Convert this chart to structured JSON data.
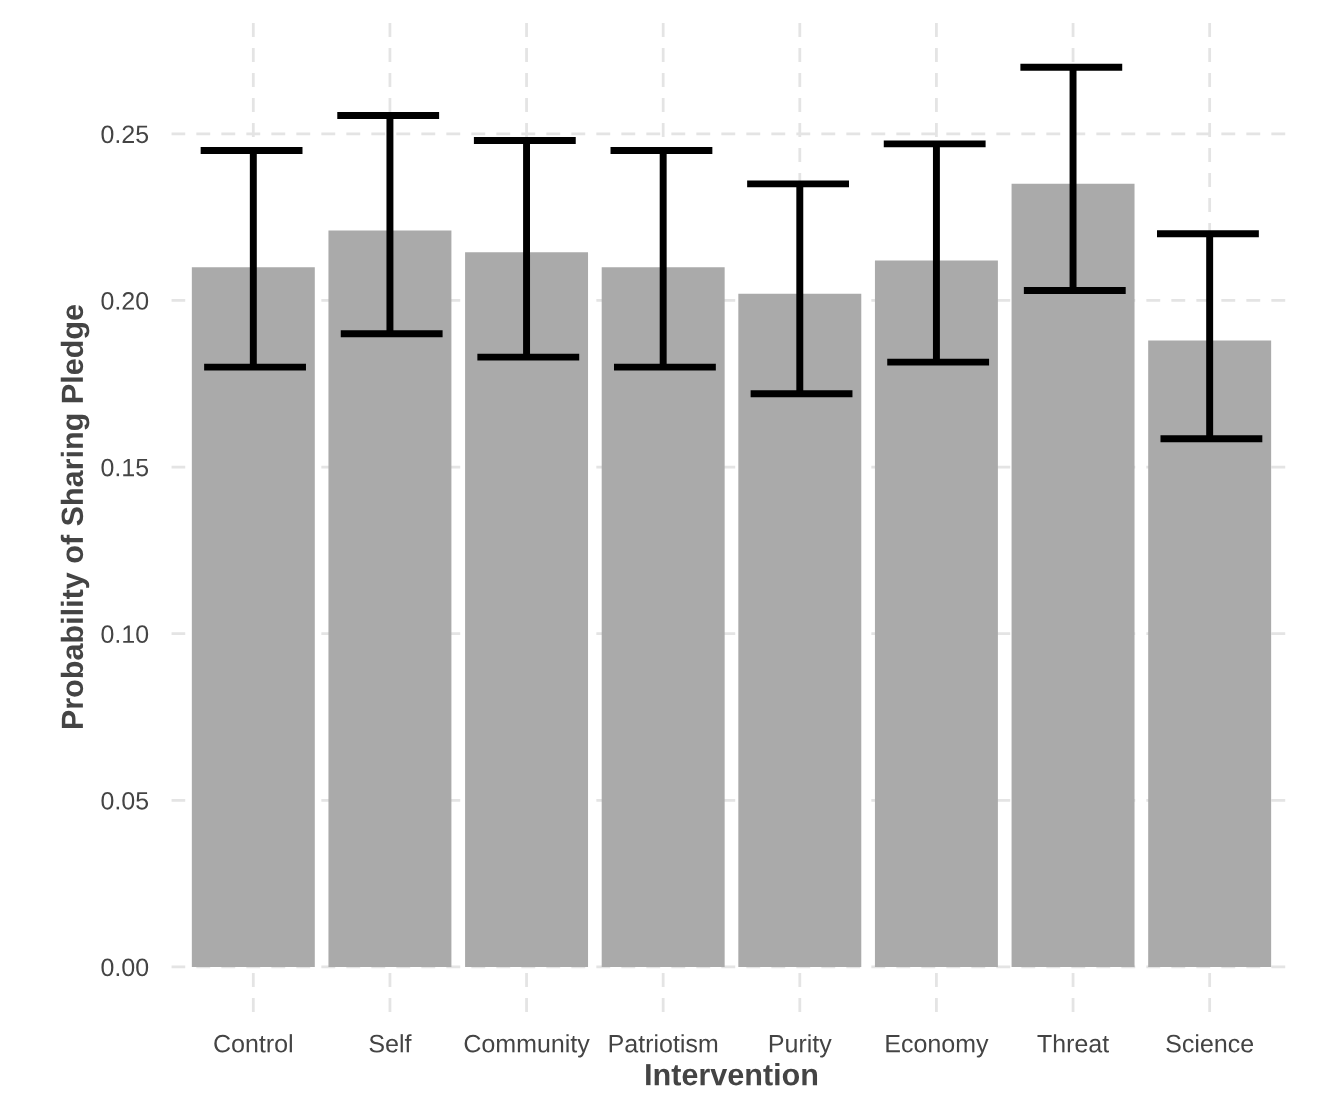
{
  "chart_data": {
    "type": "bar",
    "xlabel": "Intervention",
    "ylabel": "Probability of Sharing Pledge",
    "categories": [
      "Control",
      "Self",
      "Community",
      "Patriotism",
      "Purity",
      "Economy",
      "Threat",
      "Science"
    ],
    "values": [
      0.21,
      0.221,
      0.2145,
      0.21,
      0.202,
      0.212,
      0.235,
      0.188
    ],
    "errors": [
      [
        0.18,
        0.245
      ],
      [
        0.19,
        0.2555
      ],
      [
        0.183,
        0.248
      ],
      [
        0.18,
        0.245
      ],
      [
        0.172,
        0.235
      ],
      [
        0.1815,
        0.247
      ],
      [
        0.203,
        0.27
      ],
      [
        0.1585,
        0.22
      ]
    ],
    "color": "#aaaaaa",
    "ylim": [
      -0.0135,
      0.2835
    ],
    "yticks": [
      {
        "value": 0,
        "label": "0.00"
      },
      0.05,
      {
        "value": 0.1,
        "label": "0.10"
      },
      0.15,
      {
        "value": 0.2,
        "label": "0.20"
      },
      0.25
    ],
    "grid": true
  }
}
